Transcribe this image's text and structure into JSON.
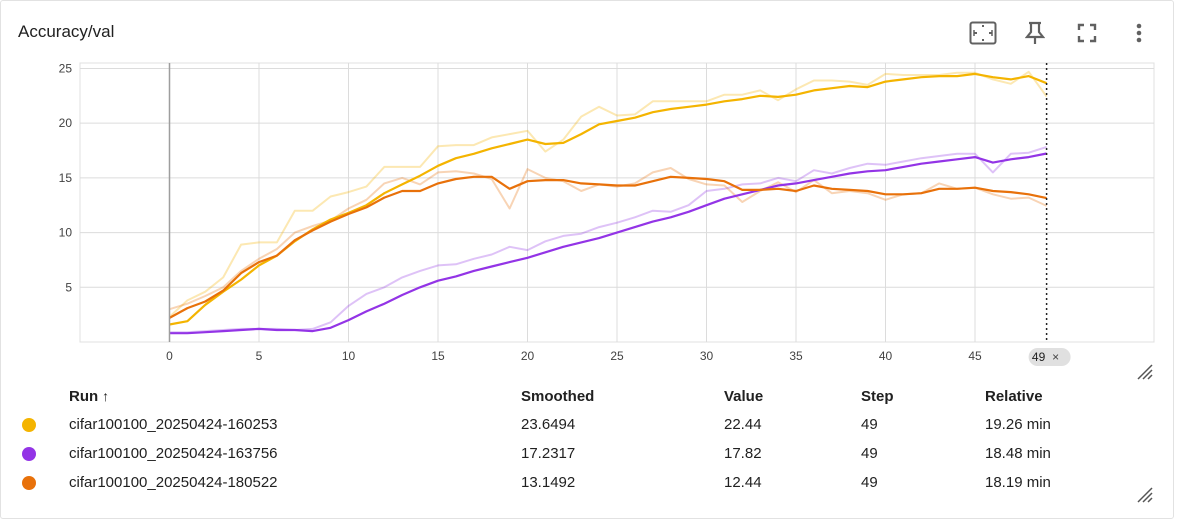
{
  "card": {
    "title": "Accuracy/val"
  },
  "toolbar": {
    "fit_icon": "fit-to-domain-icon",
    "pin_icon": "pin-icon",
    "fullscreen_icon": "fullscreen-icon",
    "menu_icon": "more-vert-icon"
  },
  "hover": {
    "step_label": "49",
    "close_label": "×"
  },
  "table": {
    "headers": {
      "run": "Run",
      "sort": "↑",
      "smoothed": "Smoothed",
      "value": "Value",
      "step": "Step",
      "relative": "Relative"
    },
    "rows": [
      {
        "color": "#f4b400",
        "run": "cifar100100_20250424-160253",
        "smoothed": "23.6494",
        "value": "22.44",
        "step": "49",
        "relative": "19.26 min"
      },
      {
        "color": "#9334e6",
        "run": "cifar100100_20250424-163756",
        "smoothed": "17.2317",
        "value": "17.82",
        "step": "49",
        "relative": "18.48 min"
      },
      {
        "color": "#e8710a",
        "run": "cifar100100_20250424-180522",
        "smoothed": "13.1492",
        "value": "12.44",
        "step": "49",
        "relative": "18.19 min"
      }
    ]
  },
  "chart_data": {
    "type": "line",
    "title": "Accuracy/val",
    "xlabel": "",
    "ylabel": "",
    "xlim": [
      -5,
      55
    ],
    "ylim": [
      0,
      25.5
    ],
    "x_ticks": [
      0,
      5,
      10,
      15,
      20,
      25,
      30,
      35,
      40,
      45
    ],
    "y_ticks": [
      5,
      10,
      15,
      20,
      25
    ],
    "grid": true,
    "hover_step": 49,
    "series": [
      {
        "name": "cifar100100_20250424-160253",
        "color": "#f4b400",
        "raw": [
          2.3,
          3.8,
          4.6,
          5.9,
          8.9,
          9.1,
          9.1,
          12.0,
          12.0,
          13.3,
          13.7,
          14.2,
          16.0,
          16.0,
          16.0,
          17.9,
          18.0,
          18.0,
          18.7,
          19.0,
          19.3,
          17.4,
          18.5,
          20.6,
          21.5,
          20.7,
          20.8,
          22.0,
          22.0,
          22.0,
          22.0,
          22.6,
          22.6,
          23.0,
          22.1,
          23.1,
          23.9,
          23.9,
          23.8,
          23.5,
          24.5,
          24.4,
          24.4,
          24.4,
          24.6,
          24.6,
          24.0,
          23.6,
          24.7,
          22.44
        ],
        "smoothed": [
          1.6,
          1.9,
          3.4,
          4.6,
          5.7,
          7.0,
          7.9,
          9.2,
          10.3,
          11.2,
          11.8,
          12.5,
          13.6,
          14.4,
          15.2,
          16.1,
          16.8,
          17.2,
          17.7,
          18.1,
          18.5,
          18.1,
          18.2,
          19.0,
          19.9,
          20.2,
          20.5,
          21.0,
          21.3,
          21.5,
          21.7,
          22.0,
          22.2,
          22.5,
          22.4,
          22.6,
          23.0,
          23.2,
          23.4,
          23.3,
          23.8,
          24.0,
          24.2,
          24.3,
          24.3,
          24.5,
          24.2,
          24.0,
          24.3,
          23.6494
        ]
      },
      {
        "name": "cifar100100_20250424-163756",
        "color": "#9334e6",
        "raw": [
          0.9,
          0.9,
          1.0,
          1.1,
          1.2,
          1.2,
          1.2,
          1.1,
          1.2,
          1.8,
          3.3,
          4.4,
          5.0,
          5.9,
          6.5,
          7.0,
          7.1,
          7.6,
          8.0,
          8.7,
          8.4,
          9.2,
          9.7,
          9.9,
          10.5,
          10.9,
          11.4,
          12.0,
          11.9,
          12.5,
          13.8,
          14.0,
          14.4,
          14.5,
          15.0,
          14.7,
          15.7,
          15.4,
          15.9,
          16.3,
          16.2,
          16.5,
          16.8,
          17.0,
          17.2,
          17.2,
          15.5,
          17.2,
          17.3,
          17.82
        ],
        "smoothed": [
          0.8,
          0.8,
          0.9,
          1.0,
          1.1,
          1.2,
          1.1,
          1.1,
          1.0,
          1.3,
          2.0,
          2.8,
          3.5,
          4.3,
          5.0,
          5.6,
          6.0,
          6.5,
          6.9,
          7.3,
          7.7,
          8.2,
          8.7,
          9.1,
          9.5,
          10.0,
          10.5,
          11.0,
          11.4,
          11.9,
          12.5,
          13.1,
          13.5,
          13.9,
          14.3,
          14.5,
          14.8,
          15.1,
          15.4,
          15.6,
          15.7,
          16.0,
          16.3,
          16.5,
          16.7,
          16.9,
          16.4,
          16.7,
          16.9,
          17.2317
        ]
      },
      {
        "name": "cifar100100_20250424-180522",
        "color": "#e8710a",
        "raw": [
          3.0,
          3.5,
          4.2,
          5.0,
          6.5,
          7.6,
          8.5,
          10.0,
          10.6,
          11.1,
          12.2,
          13.0,
          14.5,
          15.0,
          14.4,
          15.5,
          15.6,
          15.4,
          14.9,
          12.2,
          15.8,
          15.0,
          14.7,
          13.8,
          14.4,
          14.2,
          14.5,
          15.5,
          15.9,
          14.9,
          14.4,
          14.3,
          12.8,
          13.8,
          14.6,
          13.7,
          14.8,
          13.6,
          13.8,
          13.6,
          13.0,
          13.5,
          13.6,
          14.5,
          14.0,
          14.1,
          13.5,
          13.1,
          13.2,
          12.44
        ],
        "smoothed": [
          2.2,
          3.1,
          3.7,
          4.7,
          6.3,
          7.3,
          7.9,
          9.3,
          10.2,
          11.0,
          11.7,
          12.3,
          13.2,
          13.8,
          13.8,
          14.5,
          14.9,
          15.1,
          15.1,
          14.0,
          14.7,
          14.8,
          14.8,
          14.5,
          14.4,
          14.3,
          14.3,
          14.7,
          15.1,
          15.0,
          14.9,
          14.7,
          13.9,
          13.9,
          14.0,
          13.8,
          14.3,
          14.0,
          13.9,
          13.8,
          13.5,
          13.5,
          13.6,
          14.0,
          14.0,
          14.1,
          13.8,
          13.7,
          13.5,
          13.1492
        ]
      }
    ]
  }
}
